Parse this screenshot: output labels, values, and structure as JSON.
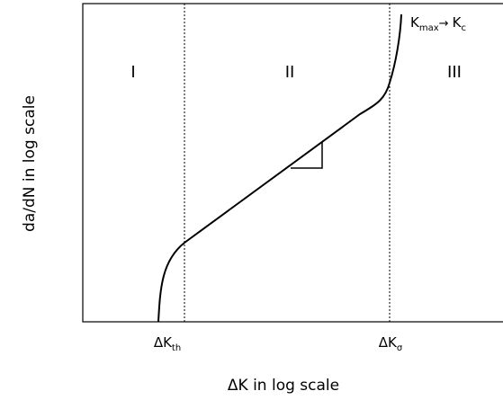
{
  "y_axis_label": "da/dN in log scale",
  "x_axis_label": "ΔK in log scale",
  "regions": [
    {
      "label": "I"
    },
    {
      "label": "II"
    },
    {
      "label": "III"
    }
  ],
  "threshold_marker": {
    "symbol": "ΔK",
    "subscript": "th"
  },
  "sigma_marker": {
    "symbol": "ΔK",
    "subscript": "σ"
  },
  "curve_end_annotation": {
    "main1": "K",
    "sub1": "max",
    "arrow": "→ ",
    "main2": "K",
    "sub2": "c"
  }
}
